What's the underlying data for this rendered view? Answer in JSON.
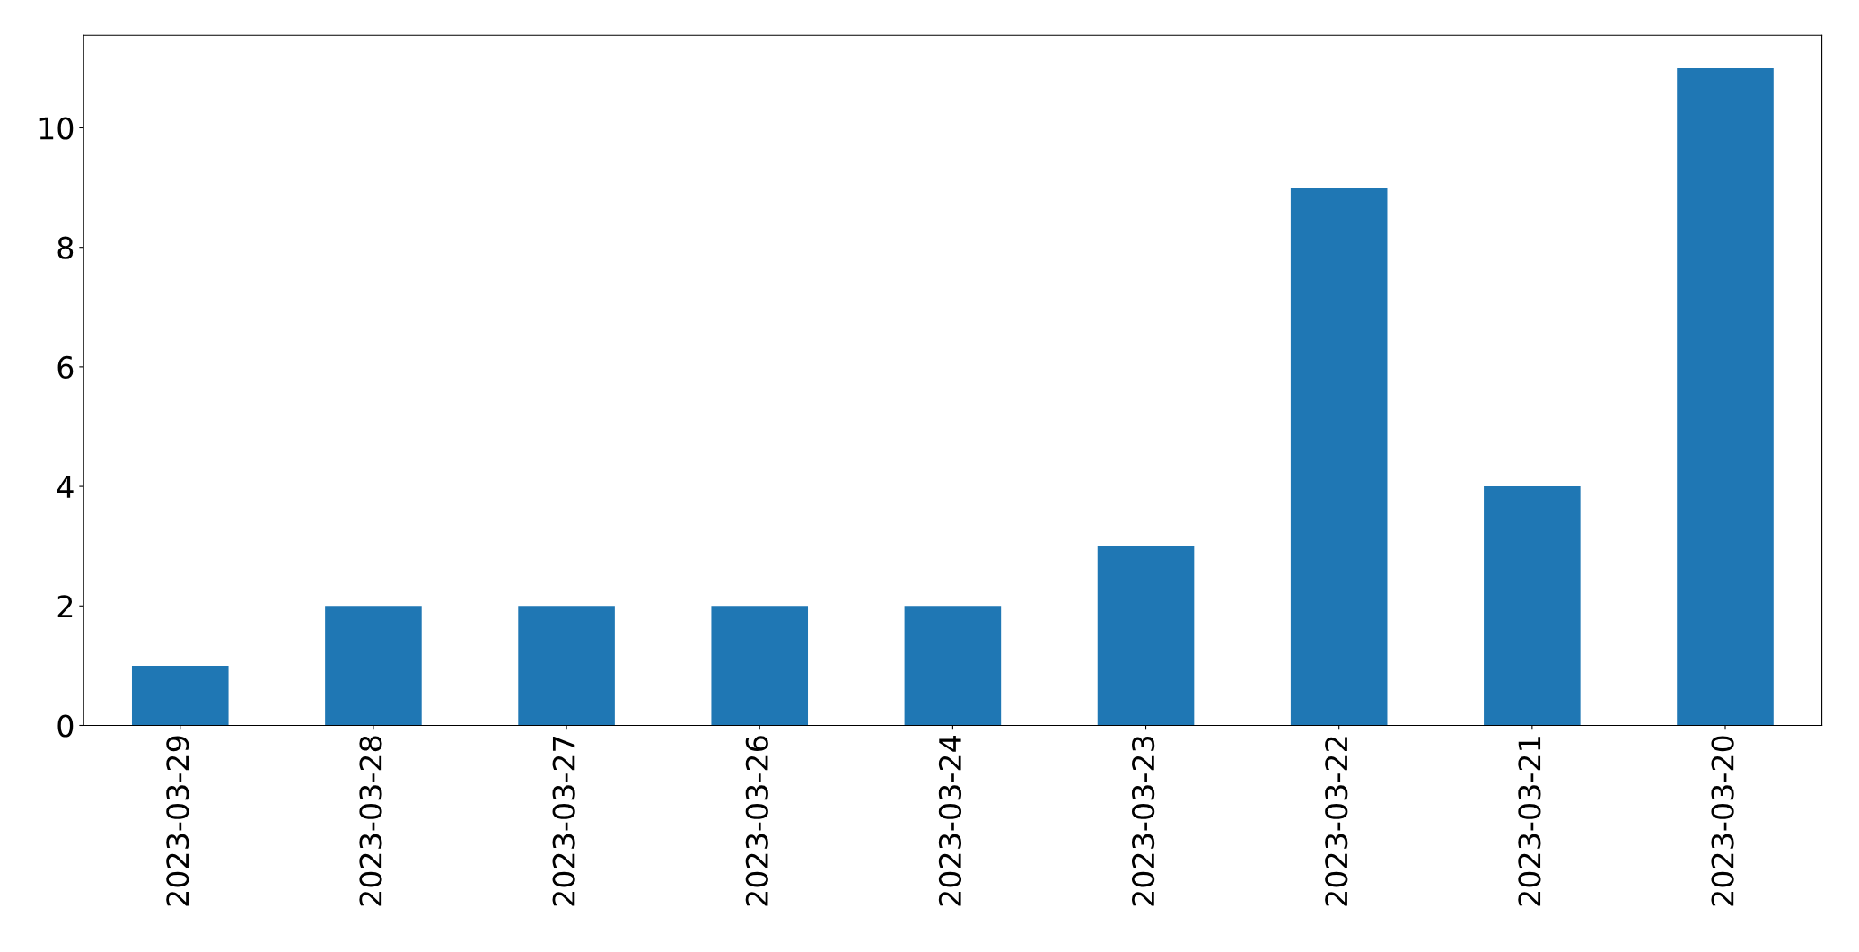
{
  "chart_data": {
    "type": "bar",
    "categories": [
      "2023-03-29",
      "2023-03-28",
      "2023-03-27",
      "2023-03-26",
      "2023-03-24",
      "2023-03-23",
      "2023-03-22",
      "2023-03-21",
      "2023-03-20"
    ],
    "values": [
      1,
      2,
      2,
      2,
      2,
      3,
      9,
      4,
      11
    ],
    "color": "#1f77b4",
    "ylim": [
      0,
      11.55
    ],
    "yticks": [
      0,
      2,
      4,
      6,
      8,
      10
    ],
    "grid": false,
    "legend": false
  }
}
